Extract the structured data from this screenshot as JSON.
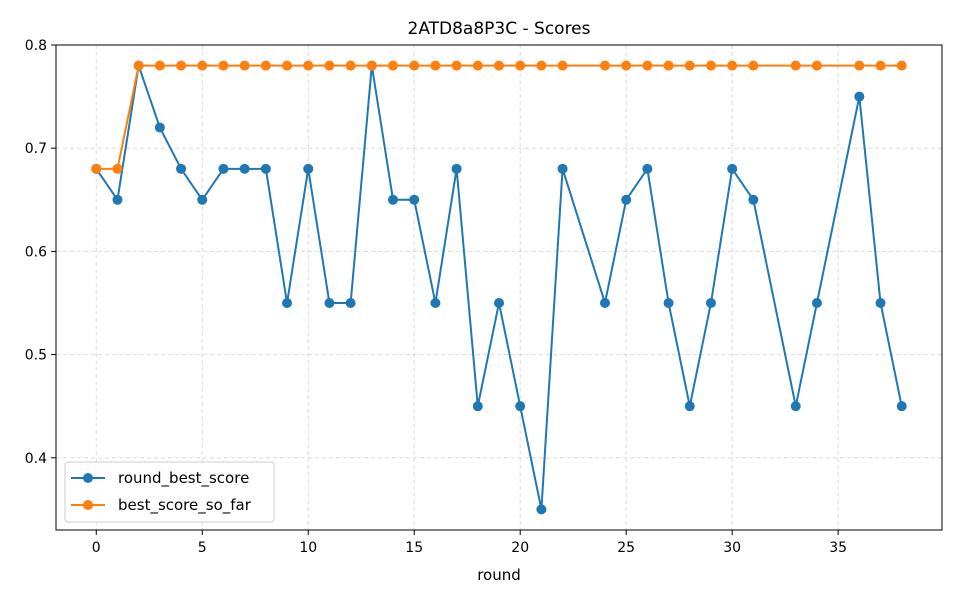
{
  "chart_data": {
    "type": "line",
    "title": "2ATD8a8P3C - Scores",
    "xlabel": "round",
    "ylabel": "",
    "xlim": [
      -1.9,
      39.9
    ],
    "ylim": [
      0.33,
      0.8
    ],
    "xticks": [
      0,
      5,
      10,
      15,
      20,
      25,
      30,
      35
    ],
    "yticks": [
      0.4,
      0.5,
      0.6,
      0.7,
      0.8
    ],
    "xtick_labels": [
      "0",
      "5",
      "10",
      "15",
      "20",
      "25",
      "30",
      "35"
    ],
    "ytick_labels": [
      "0.4",
      "0.5",
      "0.6",
      "0.7",
      "0.8"
    ],
    "grid": true,
    "legend_position": "lower-left",
    "series": [
      {
        "name": "round_best_score",
        "color": "#1f77b4",
        "x": [
          0,
          1,
          2,
          3,
          4,
          5,
          6,
          7,
          8,
          9,
          10,
          11,
          12,
          13,
          14,
          15,
          16,
          17,
          18,
          19,
          20,
          21,
          22,
          24,
          25,
          26,
          27,
          28,
          29,
          30,
          31,
          33,
          34,
          36,
          37,
          38
        ],
        "y": [
          0.68,
          0.65,
          0.78,
          0.72,
          0.68,
          0.65,
          0.68,
          0.68,
          0.68,
          0.55,
          0.68,
          0.55,
          0.55,
          0.78,
          0.65,
          0.65,
          0.55,
          0.68,
          0.45,
          0.55,
          0.45,
          0.35,
          0.68,
          0.55,
          0.65,
          0.68,
          0.55,
          0.45,
          0.55,
          0.68,
          0.65,
          0.45,
          0.55,
          0.75,
          0.55,
          0.45
        ]
      },
      {
        "name": "best_score_so_far",
        "color": "#ff7f0e",
        "x": [
          0,
          1,
          2,
          3,
          4,
          5,
          6,
          7,
          8,
          9,
          10,
          11,
          12,
          13,
          14,
          15,
          16,
          17,
          18,
          19,
          20,
          21,
          22,
          24,
          25,
          26,
          27,
          28,
          29,
          30,
          31,
          33,
          34,
          36,
          37,
          38
        ],
        "y": [
          0.68,
          0.68,
          0.78,
          0.78,
          0.78,
          0.78,
          0.78,
          0.78,
          0.78,
          0.78,
          0.78,
          0.78,
          0.78,
          0.78,
          0.78,
          0.78,
          0.78,
          0.78,
          0.78,
          0.78,
          0.78,
          0.78,
          0.78,
          0.78,
          0.78,
          0.78,
          0.78,
          0.78,
          0.78,
          0.78,
          0.78,
          0.78,
          0.78,
          0.78,
          0.78,
          0.78
        ]
      }
    ]
  }
}
